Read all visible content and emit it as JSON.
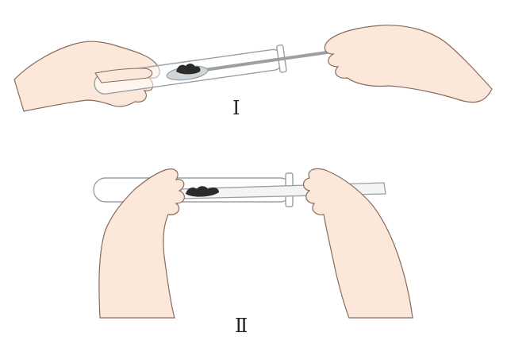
{
  "figures": [
    {
      "label": "Ⅰ"
    },
    {
      "label": "Ⅱ"
    }
  ],
  "colors": {
    "skin": "#fce8da",
    "skin_stroke": "#8a6a5a",
    "glass": "#9aa0a3",
    "solid": "#2b2b2b"
  }
}
